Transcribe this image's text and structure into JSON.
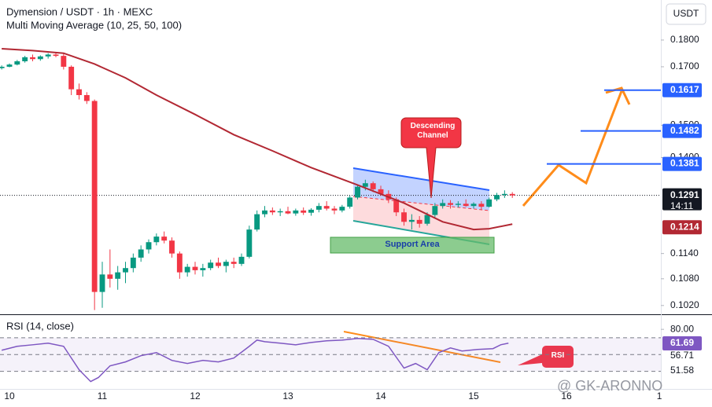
{
  "chart_data": [
    {
      "type": "candlestick",
      "title": "Dymension / USDT · 1h · MEXC",
      "subtitle": "Multi Moving Average (10, 25, 50, 100)",
      "log_scale": true,
      "currency": "USDT",
      "xlim": [
        -2.44,
        168.4
      ],
      "xticks": [
        {
          "value": 0,
          "label": "10"
        },
        {
          "value": 24,
          "label": "11"
        },
        {
          "value": 48,
          "label": "12"
        },
        {
          "value": 72,
          "label": "13"
        },
        {
          "value": 96,
          "label": "14"
        },
        {
          "value": 120,
          "label": "15"
        },
        {
          "value": 144,
          "label": "16"
        },
        {
          "value": 168,
          "label": "1"
        }
      ],
      "ylim": [
        0.1001,
        0.1961
      ],
      "yticks": [
        {
          "value": 0.18,
          "label": "0.1800"
        },
        {
          "value": 0.17,
          "label": "0.1700"
        },
        {
          "value": 0.15,
          "label": "0.1500"
        },
        {
          "value": 0.14,
          "label": "0.1400"
        },
        {
          "value": 0.114,
          "label": "0.1140"
        },
        {
          "value": 0.108,
          "label": "0.1080"
        },
        {
          "value": 0.102,
          "label": "0.1020"
        }
      ],
      "up_color": "#089981",
      "down_color": "#f23645",
      "x": [
        -2,
        0,
        2,
        4,
        6,
        8,
        10,
        12,
        14,
        16,
        18,
        20,
        22,
        24,
        26,
        28,
        30,
        32,
        34,
        36,
        38,
        40,
        42,
        44,
        46,
        48,
        50,
        52,
        54,
        56,
        58,
        60,
        62,
        64,
        66,
        68,
        70,
        72,
        74,
        76,
        78,
        80,
        82,
        84,
        86,
        88,
        90,
        92,
        94,
        96,
        98,
        100,
        102,
        104,
        106,
        108,
        110,
        112,
        114,
        116,
        118,
        120,
        122,
        124,
        126,
        128,
        130
      ],
      "candles": [
        [
          0.1695,
          0.1705,
          0.169,
          0.17
        ],
        [
          0.17,
          0.1712,
          0.1698,
          0.1708
        ],
        [
          0.1708,
          0.1725,
          0.1705,
          0.172
        ],
        [
          0.172,
          0.174,
          0.1715,
          0.1735
        ],
        [
          0.1735,
          0.1745,
          0.172,
          0.1728
        ],
        [
          0.1728,
          0.1742,
          0.1722,
          0.1738
        ],
        [
          0.1738,
          0.175,
          0.173,
          0.1745
        ],
        [
          0.1745,
          0.1752,
          0.1735,
          0.174
        ],
        [
          0.174,
          0.1748,
          0.169,
          0.17
        ],
        [
          0.17,
          0.1705,
          0.16,
          0.162
        ],
        [
          0.162,
          0.164,
          0.1585,
          0.16
        ],
        [
          0.16,
          0.161,
          0.157,
          0.158
        ],
        [
          0.158,
          0.1585,
          0.101,
          0.105
        ],
        [
          0.105,
          0.112,
          0.1015,
          0.109
        ],
        [
          0.109,
          0.115,
          0.106,
          0.108
        ],
        [
          0.108,
          0.111,
          0.1055,
          0.1095
        ],
        [
          0.1095,
          0.112,
          0.107,
          0.1105
        ],
        [
          0.1105,
          0.114,
          0.1095,
          0.113
        ],
        [
          0.113,
          0.116,
          0.112,
          0.115
        ],
        [
          0.115,
          0.1175,
          0.114,
          0.1168
        ],
        [
          0.1168,
          0.119,
          0.116,
          0.1182
        ],
        [
          0.1182,
          0.1195,
          0.1165,
          0.1172
        ],
        [
          0.1172,
          0.118,
          0.113,
          0.114
        ],
        [
          0.114,
          0.1145,
          0.108,
          0.1095
        ],
        [
          0.1095,
          0.1115,
          0.1085,
          0.1108
        ],
        [
          0.1108,
          0.112,
          0.109,
          0.11
        ],
        [
          0.11,
          0.1115,
          0.1085,
          0.1105
        ],
        [
          0.1105,
          0.1125,
          0.11,
          0.1118
        ],
        [
          0.1118,
          0.113,
          0.1105,
          0.111
        ],
        [
          0.111,
          0.1125,
          0.1095,
          0.112
        ],
        [
          0.112,
          0.113,
          0.1105,
          0.1115
        ],
        [
          0.1115,
          0.114,
          0.111,
          0.1132
        ],
        [
          0.1132,
          0.121,
          0.1128,
          0.12
        ],
        [
          0.12,
          0.125,
          0.1195,
          0.124
        ],
        [
          0.124,
          0.1262,
          0.1232,
          0.125
        ],
        [
          0.125,
          0.1258,
          0.1238,
          0.1245
        ],
        [
          0.1245,
          0.1255,
          0.1235,
          0.1248
        ],
        [
          0.1248,
          0.126,
          0.124,
          0.1242
        ],
        [
          0.1242,
          0.1255,
          0.1236,
          0.125
        ],
        [
          0.125,
          0.1258,
          0.1238,
          0.1244
        ],
        [
          0.1244,
          0.1256,
          0.1236,
          0.1252
        ],
        [
          0.1252,
          0.127,
          0.1245,
          0.1262
        ],
        [
          0.1262,
          0.1275,
          0.125,
          0.1255
        ],
        [
          0.1255,
          0.1262,
          0.124,
          0.125
        ],
        [
          0.125,
          0.1265,
          0.1245,
          0.126
        ],
        [
          0.126,
          0.129,
          0.1255,
          0.1285
        ],
        [
          0.1285,
          0.132,
          0.128,
          0.1315
        ],
        [
          0.1315,
          0.1335,
          0.1305,
          0.1325
        ],
        [
          0.1325,
          0.133,
          0.13,
          0.1308
        ],
        [
          0.1308,
          0.1318,
          0.129,
          0.1295
        ],
        [
          0.1295,
          0.1305,
          0.127,
          0.128
        ],
        [
          0.128,
          0.1285,
          0.1235,
          0.1245
        ],
        [
          0.1245,
          0.1255,
          0.121,
          0.122
        ],
        [
          0.122,
          0.124,
          0.12,
          0.1225
        ],
        [
          0.1225,
          0.1235,
          0.1205,
          0.1215
        ],
        [
          0.1215,
          0.1245,
          0.121,
          0.1238
        ],
        [
          0.1238,
          0.127,
          0.1232,
          0.1262
        ],
        [
          0.1262,
          0.128,
          0.1255,
          0.127
        ],
        [
          0.127,
          0.1278,
          0.1255,
          0.1265
        ],
        [
          0.1265,
          0.1275,
          0.1258,
          0.1268
        ],
        [
          0.1268,
          0.128,
          0.126,
          0.1262
        ],
        [
          0.1262,
          0.1272,
          0.1255,
          0.1268
        ],
        [
          0.1268,
          0.1275,
          0.1252,
          0.126
        ],
        [
          0.126,
          0.1285,
          0.1258,
          0.128
        ],
        [
          0.128,
          0.1298,
          0.1275,
          0.1292
        ],
        [
          0.1292,
          0.1305,
          0.1284,
          0.1295
        ],
        [
          0.1295,
          0.13,
          0.1284,
          0.1291
        ]
      ],
      "moving_average": {
        "color": "#b22833",
        "x": [
          -2,
          6,
          14,
          22,
          30,
          38,
          48,
          58,
          68,
          78,
          90,
          102,
          112,
          120,
          124,
          130
        ],
        "values": [
          0.1767,
          0.176,
          0.175,
          0.171,
          0.166,
          0.16,
          0.1535,
          0.147,
          0.142,
          0.137,
          0.132,
          0.127,
          0.122,
          0.12,
          0.1202,
          0.1214
        ]
      },
      "last_price": 0.1291,
      "countdown": "14:11",
      "ma_last": 0.1214,
      "levels": [
        0.1381,
        0.1482,
        0.1617
      ],
      "level_color": "#2962ff",
      "annotations": [
        "Descending Channel",
        "Support Area"
      ],
      "watermark": "@ GK-ARONNO"
    },
    {
      "type": "line",
      "title": "RSI (14, close)",
      "color": "#7e57c2",
      "xlim": [
        -2.44,
        168.4
      ],
      "ylim": [
        9,
        97
      ],
      "yticks": [
        {
          "value": 80,
          "label": "80.00"
        }
      ],
      "bands": [
        70,
        50,
        30
      ],
      "x": [
        -2,
        2,
        6,
        10,
        14,
        18,
        21,
        23,
        26,
        30,
        34,
        38,
        42,
        46,
        50,
        54,
        58,
        62,
        64,
        66,
        70,
        74,
        78,
        82,
        86,
        90,
        94,
        98,
        102,
        105,
        108,
        111,
        114,
        117,
        121,
        125,
        127,
        129
      ],
      "values": [
        55.1,
        59.8,
        61.6,
        63.5,
        59.8,
        31.9,
        17.8,
        22.6,
        36.5,
        41.2,
        48.6,
        52.3,
        43.0,
        39.3,
        43.0,
        41.2,
        45.8,
        59.8,
        67.2,
        65.3,
        63.5,
        61.6,
        64.4,
        66.3,
        67.2,
        69.1,
        68.1,
        59.8,
        33.8,
        39.3,
        31.9,
        52.3,
        57.9,
        54.2,
        56.0,
        57.0,
        61.6,
        63.5
      ],
      "current": 61.69,
      "markers": [
        56.71,
        51.58
      ],
      "annotation": "RSI"
    }
  ]
}
